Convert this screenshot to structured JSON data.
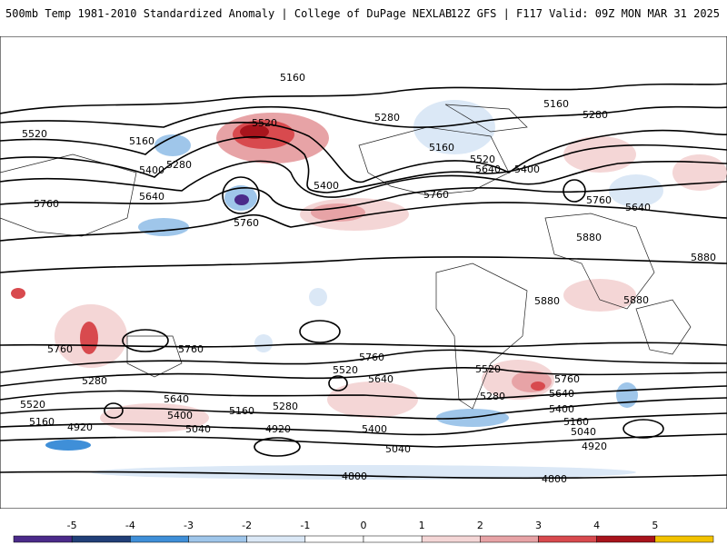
{
  "header": {
    "left": "500mb Temp 1981-2010 Standardized Anomaly | College of DuPage NEXLAB",
    "right": "12Z GFS | F117 Valid: 09Z MON MAR 31 2025"
  },
  "legend": {
    "ticks": [
      "-5",
      "-4",
      "-3",
      "-2",
      "-1",
      "0",
      "1",
      "2",
      "3",
      "4",
      "5"
    ],
    "colors": [
      "#4b2a8a",
      "#213f78",
      "#3f8fd8",
      "#9fc6ea",
      "#dbe8f6",
      "#ffffff",
      "#f4d6d6",
      "#e7a3a6",
      "#d84a4e",
      "#a8141c",
      "#f2c200"
    ]
  },
  "contours": {
    "labels": [
      "5160",
      "5280",
      "5520",
      "5400",
      "5640",
      "5760",
      "5880",
      "5040",
      "4920",
      "4800"
    ]
  }
}
